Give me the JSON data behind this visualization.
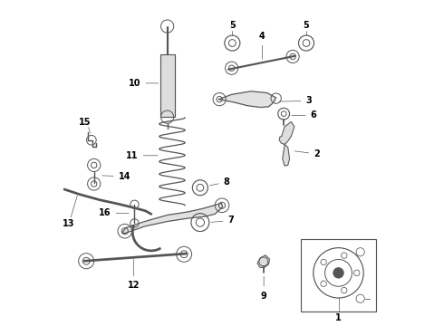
{
  "background_color": "#ffffff",
  "line_color": "#555555",
  "label_color": "#000000",
  "fig_width": 4.9,
  "fig_height": 3.6,
  "dpi": 100,
  "font_size": 7,
  "line_width": 0.7
}
